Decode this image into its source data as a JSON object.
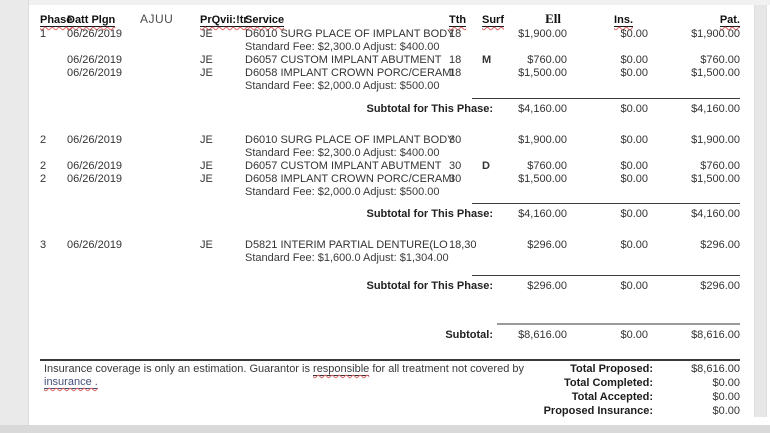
{
  "colors": {
    "spellcheck_squiggle": "#e06060",
    "link_text": "#44507c",
    "scroll_track": "#e7e7e7"
  },
  "table": {
    "headers": {
      "phase": "Phase",
      "date": "Datt Plgn",
      "ajuu": "AJUU",
      "provider": "PrQvii:!tr",
      "service": "Service",
      "tooth": "Tth",
      "surface": "Surf",
      "fee": "Ell",
      "insurance": "Ins.",
      "patient": "Pat."
    },
    "phases": [
      {
        "rows": [
          {
            "phase": "1",
            "date": "06/26/2019",
            "provider": "JE",
            "service": "D6010 SURG PLACE OF IMPLANT BODY",
            "tooth": "18",
            "surface": "",
            "fee": "$1,900.00",
            "insurance": "$0.00",
            "patient": "$1,900.00"
          },
          {
            "note": "Standard Fee: $2,300.0 Adjust: $400.00"
          },
          {
            "phase": "",
            "date": "06/26/2019",
            "provider": "JE",
            "service": "D6057 CUSTOM IMPLANT ABUTMENT",
            "tooth": "18",
            "surface": "M",
            "fee": "$760.00",
            "insurance": "$0.00",
            "patient": "$760.00"
          },
          {
            "phase": "",
            "date": "06/26/2019",
            "provider": "JE",
            "service": "D6058 IMPLANT CROWN PORC/CERAMI",
            "tooth": "18",
            "surface": "",
            "fee": "$1,500.00",
            "insurance": "$0.00",
            "patient": "$1,500.00"
          },
          {
            "note": "Standard Fee: $2,000.0 Adjust: $500.00"
          }
        ],
        "subtotal": {
          "label": "Subtotal for This Phase:",
          "fee": "$4,160.00",
          "insurance": "$0.00",
          "patient": "$4,160.00"
        }
      },
      {
        "rows": [
          {
            "phase": "2",
            "date": "06/26/2019",
            "provider": "JE",
            "service": "D6010 SURG PLACE OF IMPLANT BODY",
            "tooth": "30",
            "surface": "",
            "fee": "$1,900.00",
            "insurance": "$0.00",
            "patient": "$1,900.00"
          },
          {
            "note": "Standard Fee: $2,300.0 Adjust: $400.00"
          },
          {
            "phase": "2",
            "date": "06/26/2019",
            "provider": "JE",
            "service": "D6057 CUSTOM IMPLANT ABUTMENT",
            "tooth": "30",
            "surface": "D",
            "fee": "$760.00",
            "insurance": "$0.00",
            "patient": "$760.00"
          },
          {
            "phase": "2",
            "date": "06/26/2019",
            "provider": "JE",
            "service": "D6058 IMPLANT CROWN PORC/CERAMI",
            "tooth": "30",
            "surface": "",
            "fee": "$1,500.00",
            "insurance": "$0.00",
            "patient": "$1,500.00"
          },
          {
            "note": "Standard Fee: $2,000.0 Adjust: $500.00"
          }
        ],
        "subtotal": {
          "label": "Subtotal for This Phase:",
          "fee": "$4,160.00",
          "insurance": "$0.00",
          "patient": "$4,160.00"
        }
      },
      {
        "rows": [
          {
            "phase": "3",
            "date": "06/26/2019",
            "provider": "JE",
            "service": "D5821  INTERIM PARTIAL DENTURE(LO",
            "tooth": "18,30",
            "surface": "",
            "fee": "$296.00",
            "insurance": "$0.00",
            "patient": "$296.00"
          },
          {
            "note": "Standard Fee: $1,600.0 Adjust: $1,304.00"
          }
        ],
        "subtotal": {
          "label": "Subtotal for This Phase:",
          "fee": "$296.00",
          "insurance": "$0.00",
          "patient": "$296.00"
        }
      }
    ],
    "grand_subtotal": {
      "label": "Subtotal:",
      "fee": "$8,616.00",
      "insurance": "$0.00",
      "patient": "$8,616.00"
    }
  },
  "footer": {
    "note_part1": "Insurance coverage is only an estimation. Guarantor is ",
    "note_underlined_word": "responsible",
    "note_part2": " for all treatment not covered by",
    "note_line2": "insurance .",
    "totals": [
      {
        "label": "Total Proposed:",
        "value": "$8,616.00"
      },
      {
        "label": "Total Completed:",
        "value": "$0.00"
      },
      {
        "label": "Total Accepted:",
        "value": "$0.00"
      },
      {
        "label": "Proposed Insurance:",
        "value": "$0.00"
      }
    ]
  }
}
